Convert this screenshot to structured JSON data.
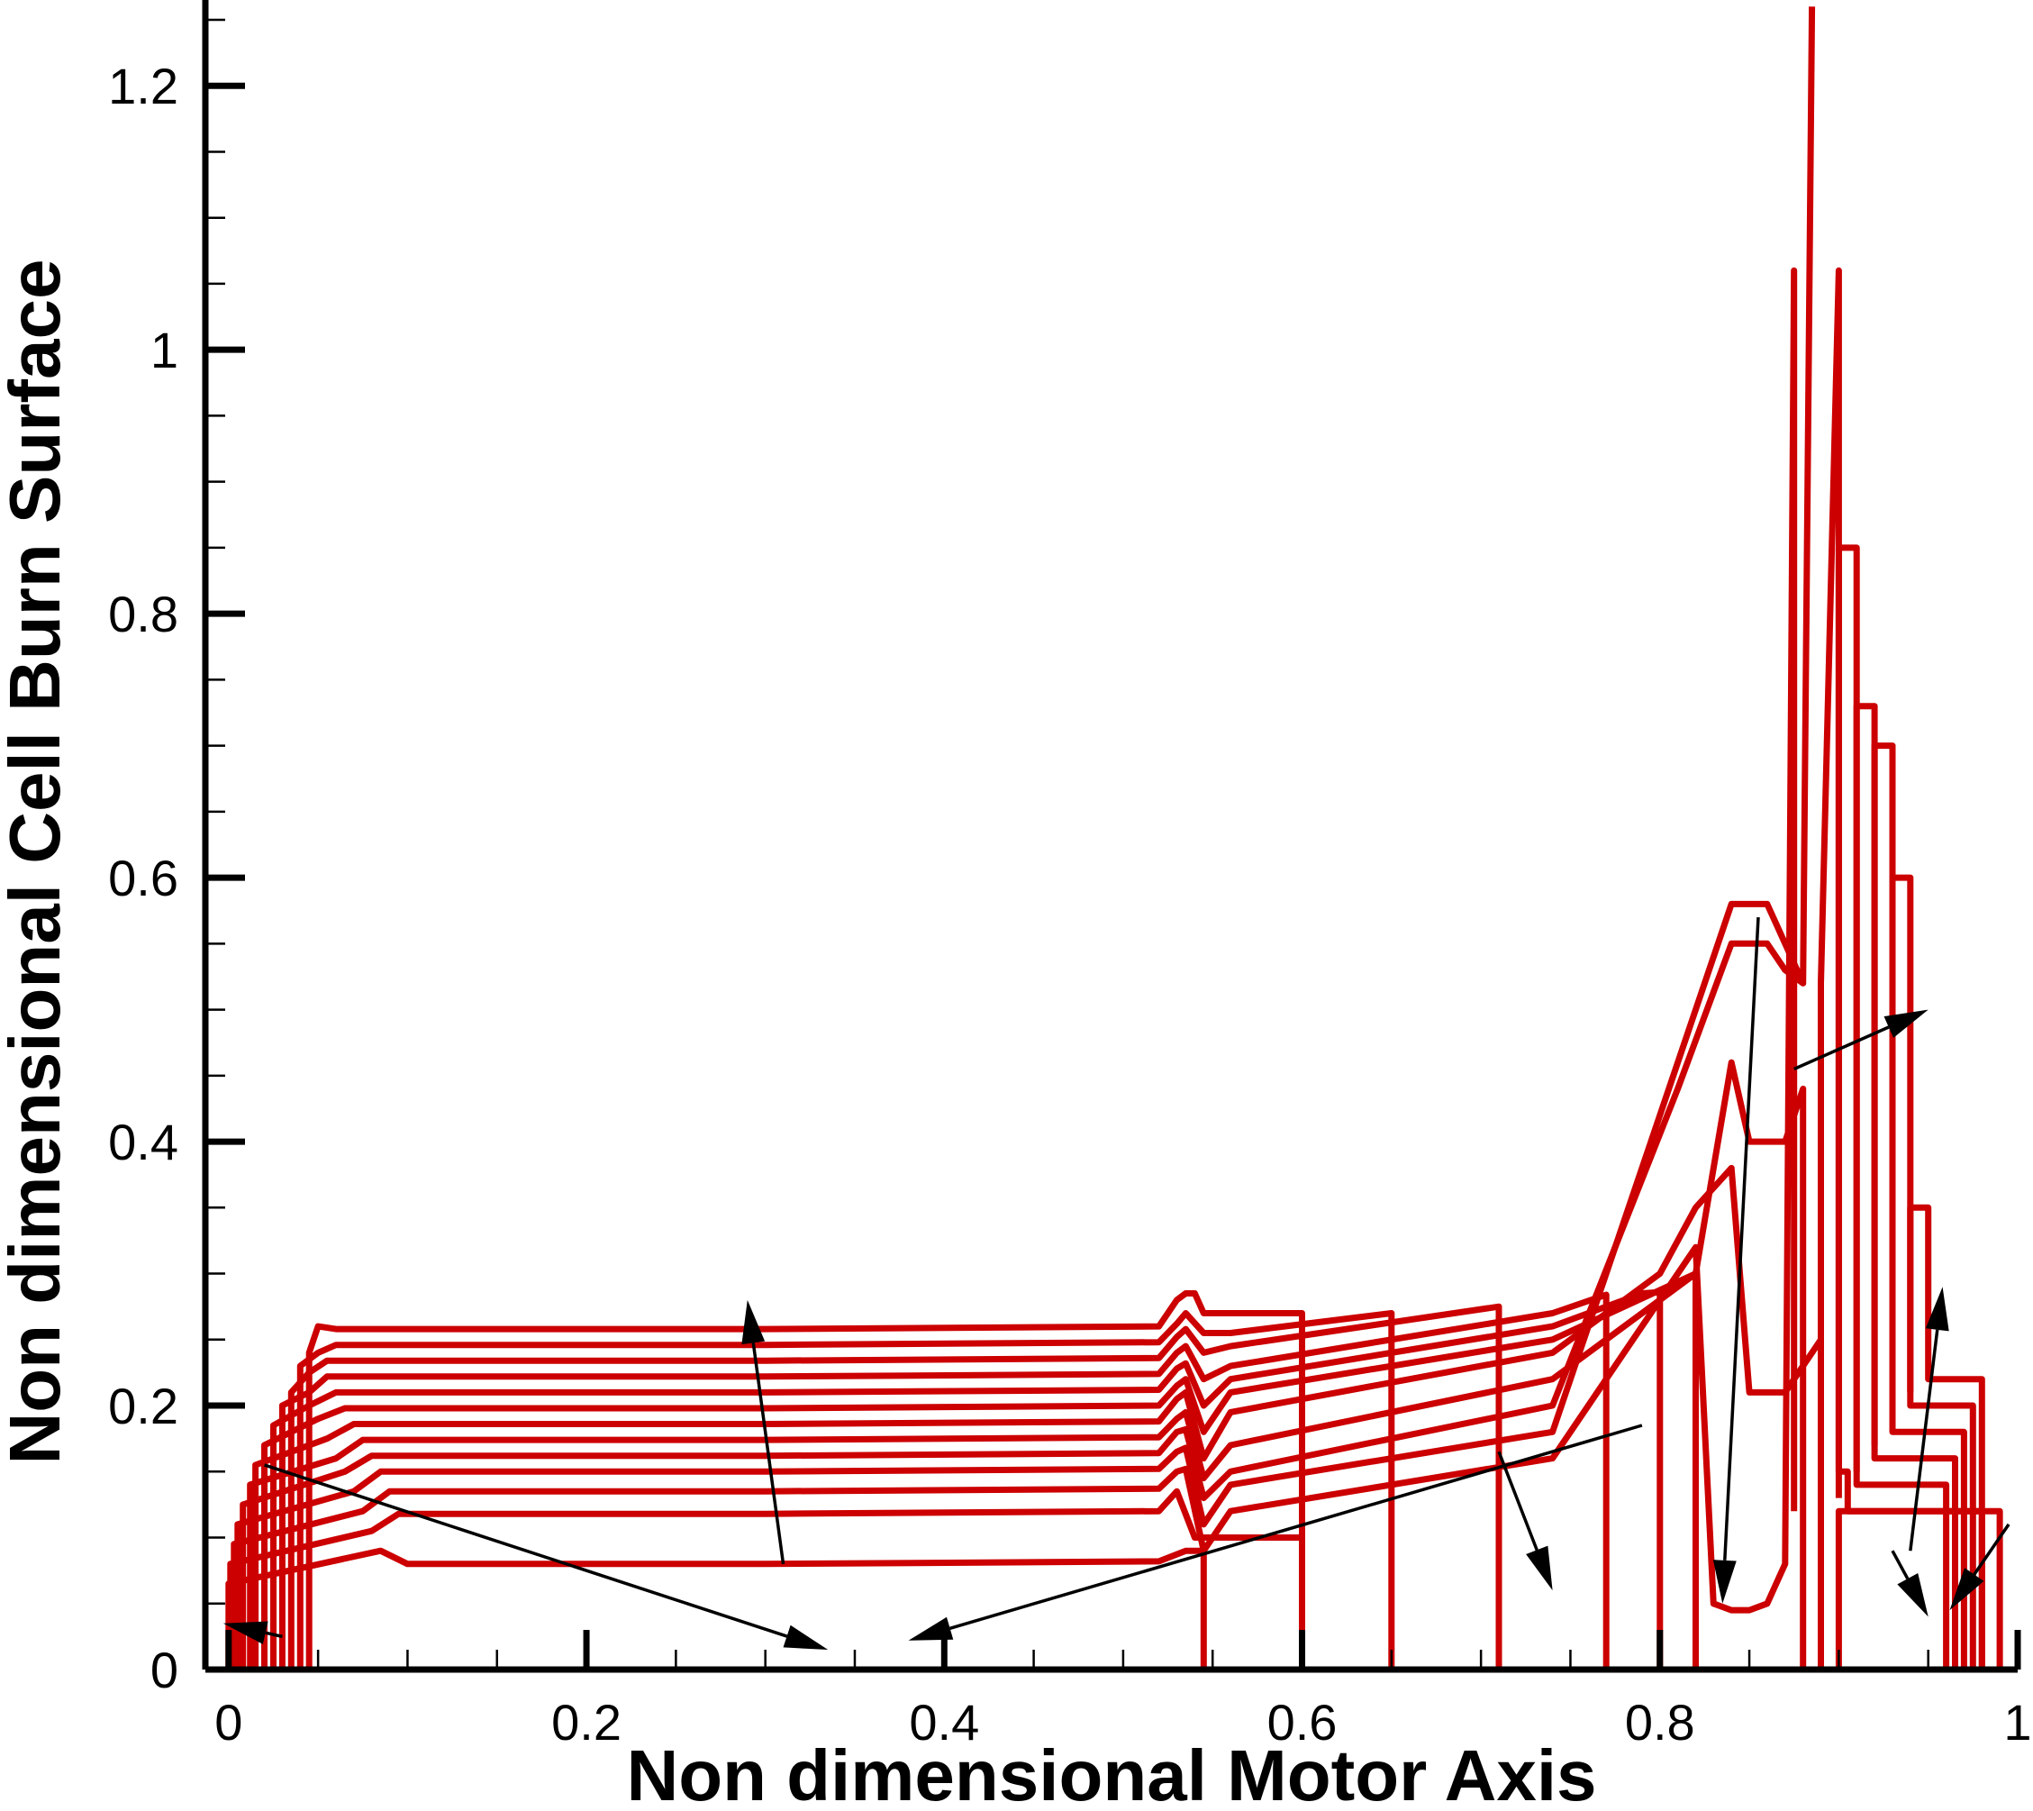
{
  "chart_data": {
    "type": "line",
    "title": "",
    "xlabel": "Non dimensional Motor Axis",
    "ylabel": "Non dimensional Cell Burn Surface",
    "xlim": [
      -0.013,
      1.0
    ],
    "ylim": [
      0,
      1.265
    ],
    "xticks": [
      0,
      0.2,
      0.4,
      0.6,
      0.8,
      1
    ],
    "xtick_labels": [
      "0",
      "0.2",
      "0.4",
      "0.6",
      "0.8",
      "1"
    ],
    "yticks": [
      0,
      0.2,
      0.4,
      0.6,
      0.8,
      1,
      1.2
    ],
    "ytick_labels": [
      "0",
      "0.2",
      "0.4",
      "0.6",
      "0.8",
      "1",
      "1.2"
    ],
    "grid": false,
    "legend": "none",
    "line_color": "#cc0000",
    "arrow_color": "#000000",
    "series": [
      {
        "x": [
          0.045,
          0.045,
          0.05,
          0.06,
          0.1,
          0.3,
          0.52,
          0.53,
          0.535,
          0.54,
          0.545,
          0.6,
          0.6
        ],
        "y": [
          0,
          0.24,
          0.26,
          0.258,
          0.258,
          0.258,
          0.26,
          0.28,
          0.285,
          0.285,
          0.27,
          0.27,
          0
        ]
      },
      {
        "x": [
          0.04,
          0.04,
          0.05,
          0.06,
          0.1,
          0.3,
          0.52,
          0.53,
          0.535,
          0.545,
          0.56,
          0.65,
          0.65
        ],
        "y": [
          0,
          0.23,
          0.24,
          0.246,
          0.246,
          0.246,
          0.248,
          0.262,
          0.27,
          0.255,
          0.255,
          0.27,
          0
        ]
      },
      {
        "x": [
          0.035,
          0.035,
          0.045,
          0.055,
          0.1,
          0.3,
          0.52,
          0.53,
          0.535,
          0.545,
          0.56,
          0.71,
          0.71
        ],
        "y": [
          0,
          0.21,
          0.225,
          0.234,
          0.234,
          0.234,
          0.236,
          0.252,
          0.258,
          0.24,
          0.245,
          0.275,
          0
        ]
      },
      {
        "x": [
          0.03,
          0.03,
          0.045,
          0.055,
          0.1,
          0.3,
          0.52,
          0.53,
          0.535,
          0.545,
          0.56,
          0.74,
          0.77,
          0.77
        ],
        "y": [
          0,
          0.2,
          0.21,
          0.222,
          0.222,
          0.222,
          0.224,
          0.24,
          0.245,
          0.22,
          0.23,
          0.27,
          0.284,
          0
        ]
      },
      {
        "x": [
          0.025,
          0.025,
          0.045,
          0.06,
          0.1,
          0.3,
          0.52,
          0.53,
          0.535,
          0.545,
          0.56,
          0.74,
          0.79,
          0.8,
          0.8
        ],
        "y": [
          0,
          0.185,
          0.2,
          0.21,
          0.21,
          0.21,
          0.212,
          0.228,
          0.232,
          0.2,
          0.22,
          0.26,
          0.285,
          0.286,
          0
        ]
      },
      {
        "x": [
          0.02,
          0.02,
          0.05,
          0.065,
          0.1,
          0.3,
          0.52,
          0.53,
          0.535,
          0.545,
          0.56,
          0.74,
          0.82,
          0.82
        ],
        "y": [
          0,
          0.17,
          0.19,
          0.198,
          0.198,
          0.198,
          0.2,
          0.215,
          0.22,
          0.18,
          0.21,
          0.25,
          0.3,
          0
        ]
      },
      {
        "x": [
          0.015,
          0.015,
          0.055,
          0.07,
          0.1,
          0.3,
          0.52,
          0.53,
          0.535,
          0.545,
          0.56,
          0.74,
          0.8,
          0.82,
          0.84,
          0.85,
          0.87,
          0.89
        ],
        "y": [
          0,
          0.155,
          0.175,
          0.186,
          0.186,
          0.186,
          0.188,
          0.205,
          0.21,
          0.16,
          0.195,
          0.24,
          0.3,
          0.35,
          0.38,
          0.21,
          0.21,
          0.25
        ]
      },
      {
        "x": [
          0.012,
          0.012,
          0.06,
          0.075,
          0.1,
          0.3,
          0.52,
          0.53,
          0.535,
          0.545,
          0.56,
          0.74,
          0.82,
          0.84,
          0.85,
          0.87,
          0.88,
          0.88
        ],
        "y": [
          0,
          0.14,
          0.16,
          0.174,
          0.174,
          0.174,
          0.176,
          0.19,
          0.195,
          0.145,
          0.17,
          0.22,
          0.3,
          0.46,
          0.4,
          0.4,
          0.44,
          0
        ]
      },
      {
        "x": [
          0.008,
          0.008,
          0.065,
          0.08,
          0.1,
          0.3,
          0.52,
          0.53,
          0.535,
          0.545,
          0.56,
          0.74,
          0.81,
          0.84,
          0.86,
          0.87,
          0.88
        ],
        "y": [
          0,
          0.125,
          0.15,
          0.162,
          0.162,
          0.162,
          0.164,
          0.18,
          0.182,
          0.13,
          0.15,
          0.2,
          0.44,
          0.55,
          0.55,
          0.53,
          0.52
        ]
      },
      {
        "x": [
          0.005,
          0.005,
          0.07,
          0.085,
          0.1,
          0.3,
          0.52,
          0.53,
          0.535,
          0.545,
          0.56,
          0.74,
          0.8,
          0.84,
          0.86,
          0.87,
          0.88,
          0.885
        ],
        "y": [
          0,
          0.11,
          0.135,
          0.15,
          0.15,
          0.15,
          0.152,
          0.165,
          0.168,
          0.11,
          0.14,
          0.18,
          0.42,
          0.58,
          0.58,
          0.55,
          0.52,
          1.26
        ]
      },
      {
        "x": [
          0.003,
          0.003,
          0.075,
          0.09,
          0.1,
          0.3,
          0.52,
          0.53,
          0.535,
          0.545,
          0.56,
          0.74,
          0.78,
          0.82,
          0.83,
          0.84,
          0.85,
          0.86,
          0.87,
          0.875,
          0.875
        ],
        "y": [
          0,
          0.095,
          0.12,
          0.135,
          0.135,
          0.135,
          0.137,
          0.15,
          0.152,
          0.09,
          0.12,
          0.16,
          0.24,
          0.32,
          0.05,
          0.045,
          0.045,
          0.05,
          0.08,
          1.06,
          0.12
        ]
      },
      {
        "x": [
          0.001,
          0.001,
          0.08,
          0.095,
          0.1,
          0.3,
          0.52,
          0.53,
          0.54,
          0.6,
          0.6
        ],
        "y": [
          0,
          0.08,
          0.105,
          0.118,
          0.118,
          0.118,
          0.12,
          0.135,
          0.1,
          0.1,
          0
        ]
      },
      {
        "x": [
          0,
          0,
          0.085,
          0.1,
          0.3,
          0.52,
          0.535,
          0.545,
          0.545
        ],
        "y": [
          0,
          0.065,
          0.09,
          0.08,
          0.08,
          0.082,
          0.09,
          0.09,
          0
        ]
      },
      {
        "x": [
          0.89,
          0.89,
          0.9,
          0.9,
          0.905,
          0.905,
          0.905,
          0.98,
          0.98
        ],
        "y": [
          0,
          0.52,
          1.06,
          0.15,
          0.15,
          0.12,
          0.12,
          0.12,
          0
        ]
      },
      {
        "x": [
          0.9,
          0.9,
          0.91,
          0.91,
          0.96,
          0.96
        ],
        "y": [
          0.13,
          0.85,
          0.85,
          0.14,
          0.14,
          0
        ]
      },
      {
        "x": [
          0.91,
          0.91,
          0.92,
          0.92,
          0.965,
          0.965
        ],
        "y": [
          0.15,
          0.73,
          0.73,
          0.16,
          0.16,
          0
        ]
      },
      {
        "x": [
          0.92,
          0.92,
          0.93,
          0.93,
          0.97,
          0.97
        ],
        "y": [
          0.17,
          0.7,
          0.7,
          0.18,
          0.18,
          0
        ]
      },
      {
        "x": [
          0.93,
          0.93,
          0.94,
          0.94,
          0.975,
          0.975
        ],
        "y": [
          0.19,
          0.6,
          0.6,
          0.2,
          0.2,
          0
        ]
      },
      {
        "x": [
          0.94,
          0.94,
          0.95,
          0.95,
          0.98,
          0.98
        ],
        "y": [
          0.21,
          0.35,
          0.35,
          0.22,
          0.22,
          0
        ]
      },
      {
        "x": [
          0.9,
          0.9,
          0.96,
          0.99,
          0.99
        ],
        "y": [
          0,
          0.12,
          0.12,
          0.12,
          0
        ]
      }
    ],
    "arrows": [
      {
        "from": [
          0.31,
          0.08
        ],
        "to": [
          0.29,
          0.28
        ]
      },
      {
        "from": [
          0.02,
          0.155
        ],
        "to": [
          0.335,
          0.015
        ]
      },
      {
        "from": [
          0.79,
          0.185
        ],
        "to": [
          0.38,
          0.022
        ]
      },
      {
        "from": [
          0.03,
          0.025
        ],
        "to": [
          -0.003,
          0.035
        ]
      },
      {
        "from": [
          0.71,
          0.165
        ],
        "to": [
          0.74,
          0.06
        ]
      },
      {
        "from": [
          0.855,
          0.57
        ],
        "to": [
          0.835,
          0.05
        ]
      },
      {
        "from": [
          0.875,
          0.455
        ],
        "to": [
          0.95,
          0.5
        ]
      },
      {
        "from": [
          0.93,
          0.09
        ],
        "to": [
          0.95,
          0.04
        ]
      },
      {
        "from": [
          0.94,
          0.09
        ],
        "to": [
          0.958,
          0.29
        ]
      },
      {
        "from": [
          0.995,
          0.11
        ],
        "to": [
          0.962,
          0.045
        ]
      }
    ]
  }
}
